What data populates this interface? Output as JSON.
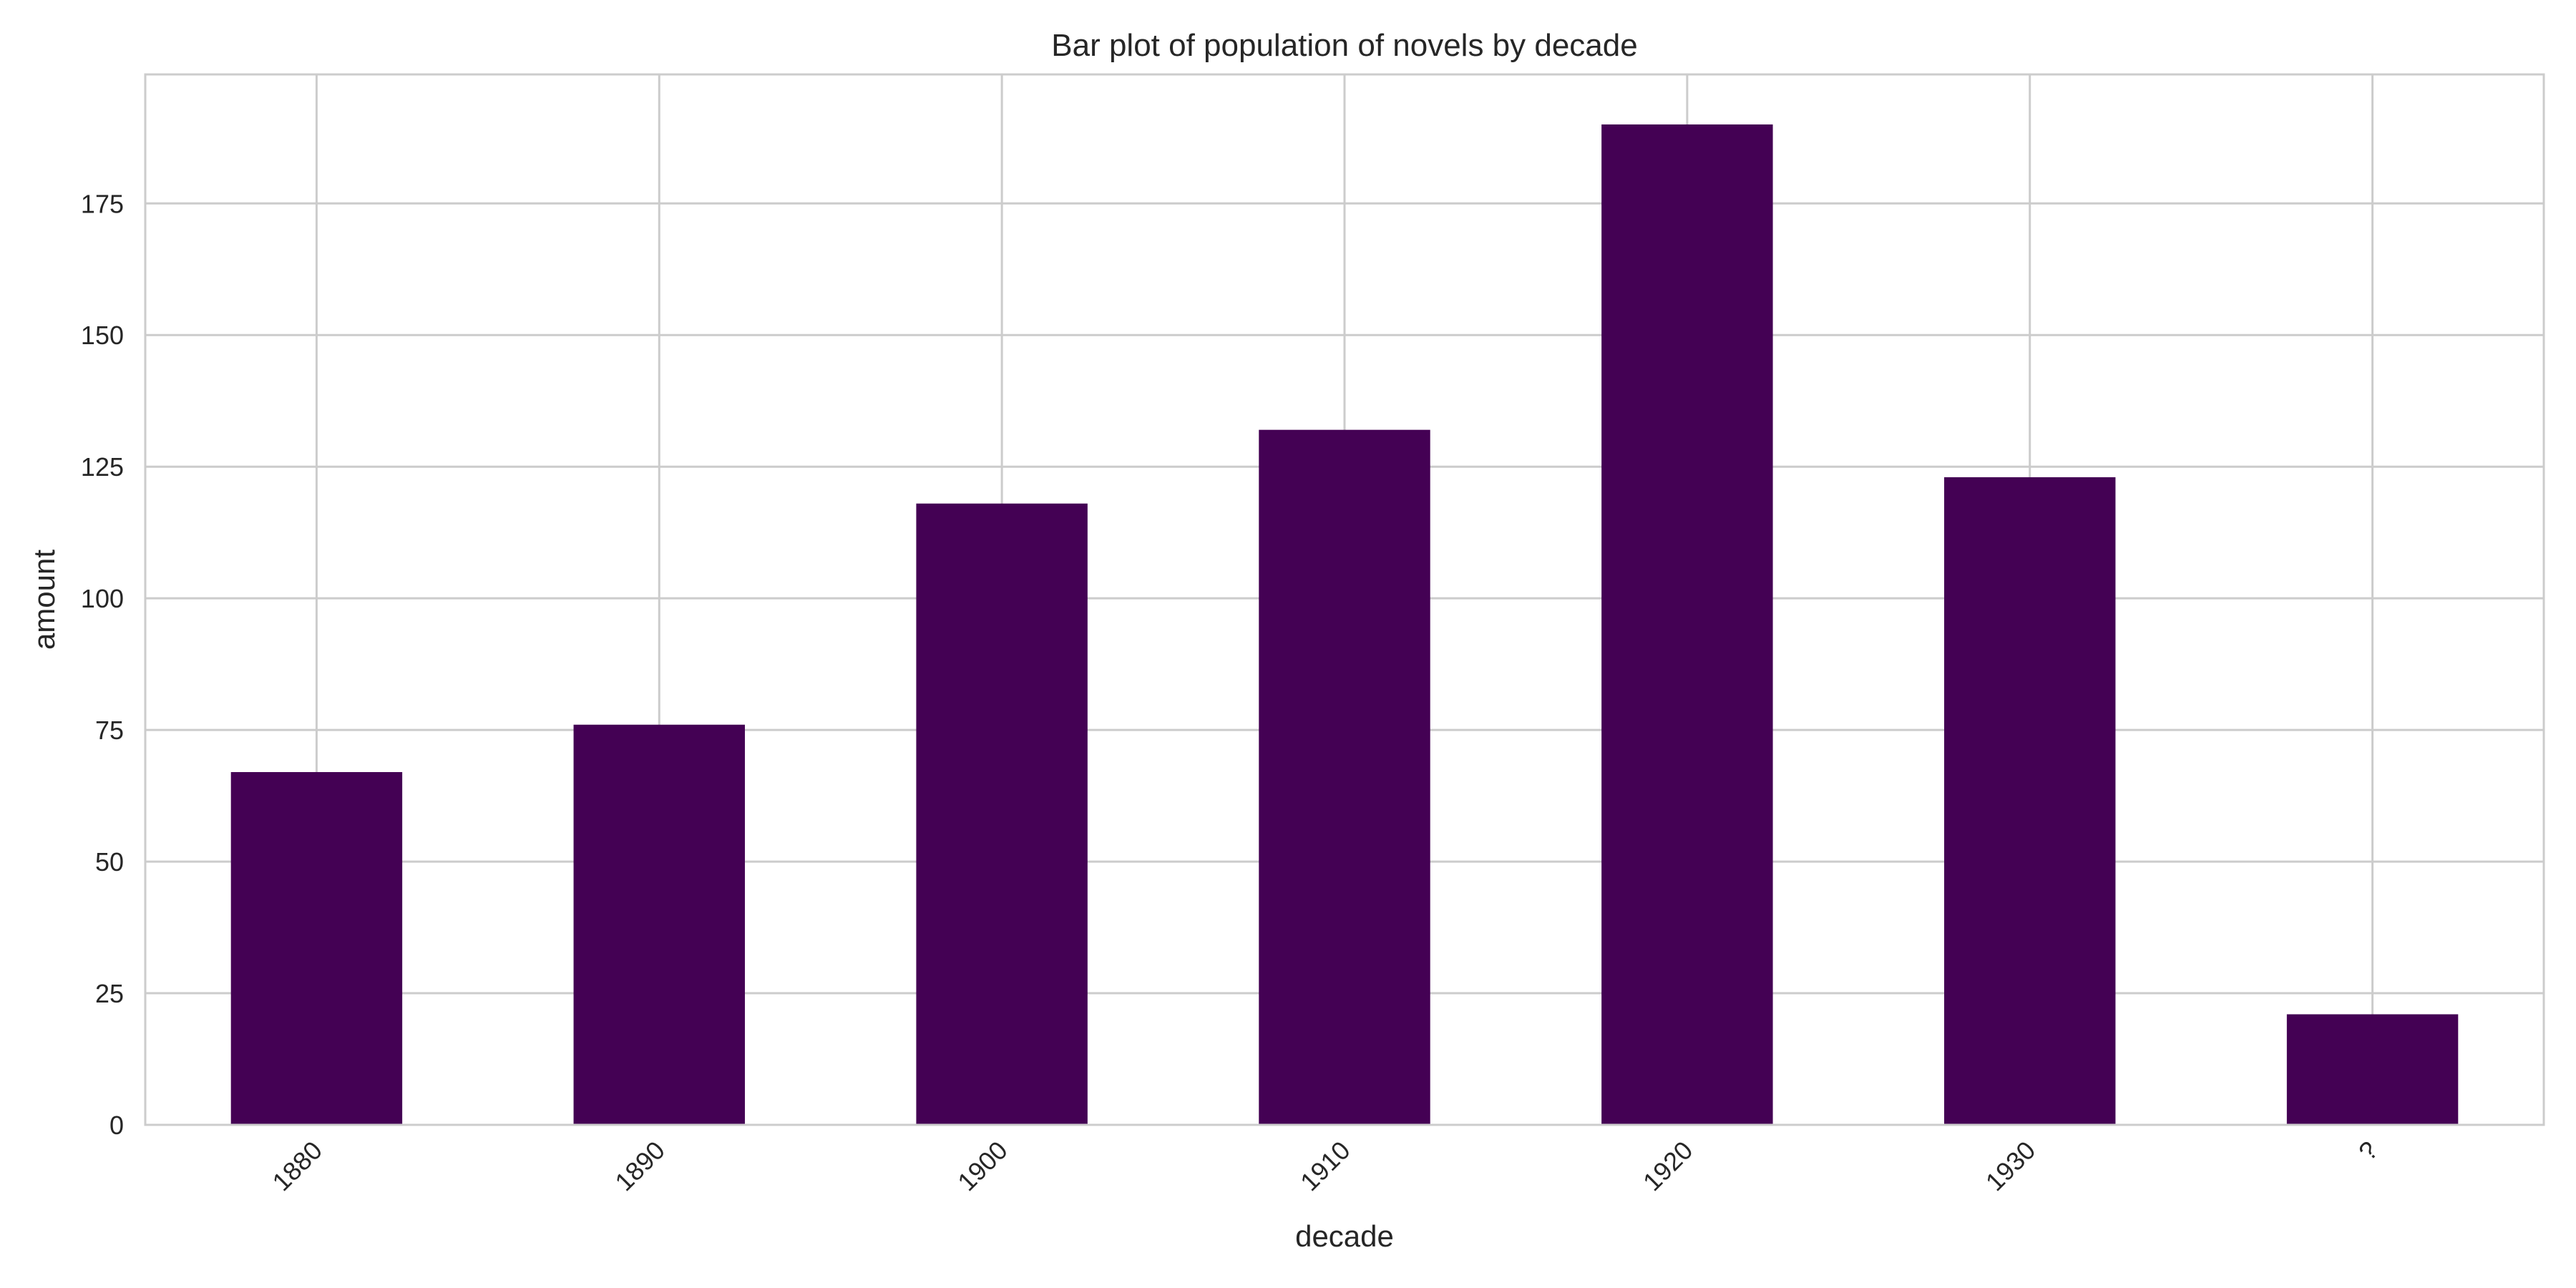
{
  "chart_data": {
    "type": "bar",
    "title": "Bar plot of population of novels by decade",
    "xlabel": "decade",
    "ylabel": "amount",
    "categories": [
      "1880",
      "1890",
      "1900",
      "1910",
      "1920",
      "1930",
      "?"
    ],
    "values": [
      67,
      76,
      118,
      132,
      190,
      123,
      21
    ],
    "ylim": [
      0,
      199.5
    ],
    "yticks": [
      0,
      25,
      50,
      75,
      100,
      125,
      150,
      175
    ],
    "bar_color": "#440154",
    "grid": true,
    "x_tick_rotation_deg": -45
  }
}
